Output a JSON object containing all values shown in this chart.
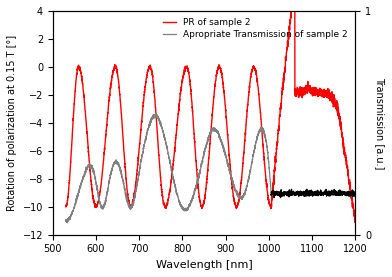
{
  "xlim": [
    500,
    1200
  ],
  "ylim_left": [
    -12,
    4
  ],
  "ylim_right": [
    0,
    1
  ],
  "xlabel": "Wavelength [nm]",
  "ylabel_left": "Rotation of polarization at 0.15 T [°]",
  "ylabel_right": "Transmission [a.u.]",
  "legend_pr": "PR of sample 2",
  "legend_tr": "Apropriate Transmission of sample 2",
  "pr_color": "#ff0000",
  "tr_color_osc": "#808080",
  "tr_color_flat": "#000000",
  "pr_linewidth": 1.0,
  "tr_linewidth": 0.9,
  "xticks": [
    500,
    600,
    700,
    800,
    900,
    1000,
    1100,
    1200
  ],
  "yticks_left": [
    -12,
    -10,
    -8,
    -6,
    -4,
    -2,
    0,
    2,
    4
  ],
  "yticks_right": [
    0,
    1
  ],
  "background": "#ffffff"
}
